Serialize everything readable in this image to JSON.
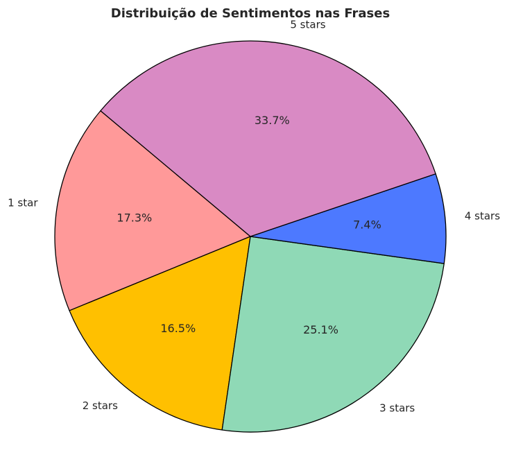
{
  "chart_data": {
    "type": "pie",
    "title": "Distribuição de Sentimentos nas Frases",
    "categories": [
      "1 star",
      "2 stars",
      "3 stars",
      "4 stars",
      "5 stars"
    ],
    "values": [
      17.3,
      16.5,
      25.1,
      7.4,
      33.7
    ],
    "percent_labels": [
      "17.3%",
      "16.5%",
      "25.1%",
      "7.4%",
      "33.7%"
    ],
    "colors": [
      "#ff9999",
      "#ffc000",
      "#8fd9b6",
      "#4d79ff",
      "#d98ac4"
    ],
    "start_angle_deg": 140,
    "direction": "counterclockwise",
    "legend": "none"
  }
}
